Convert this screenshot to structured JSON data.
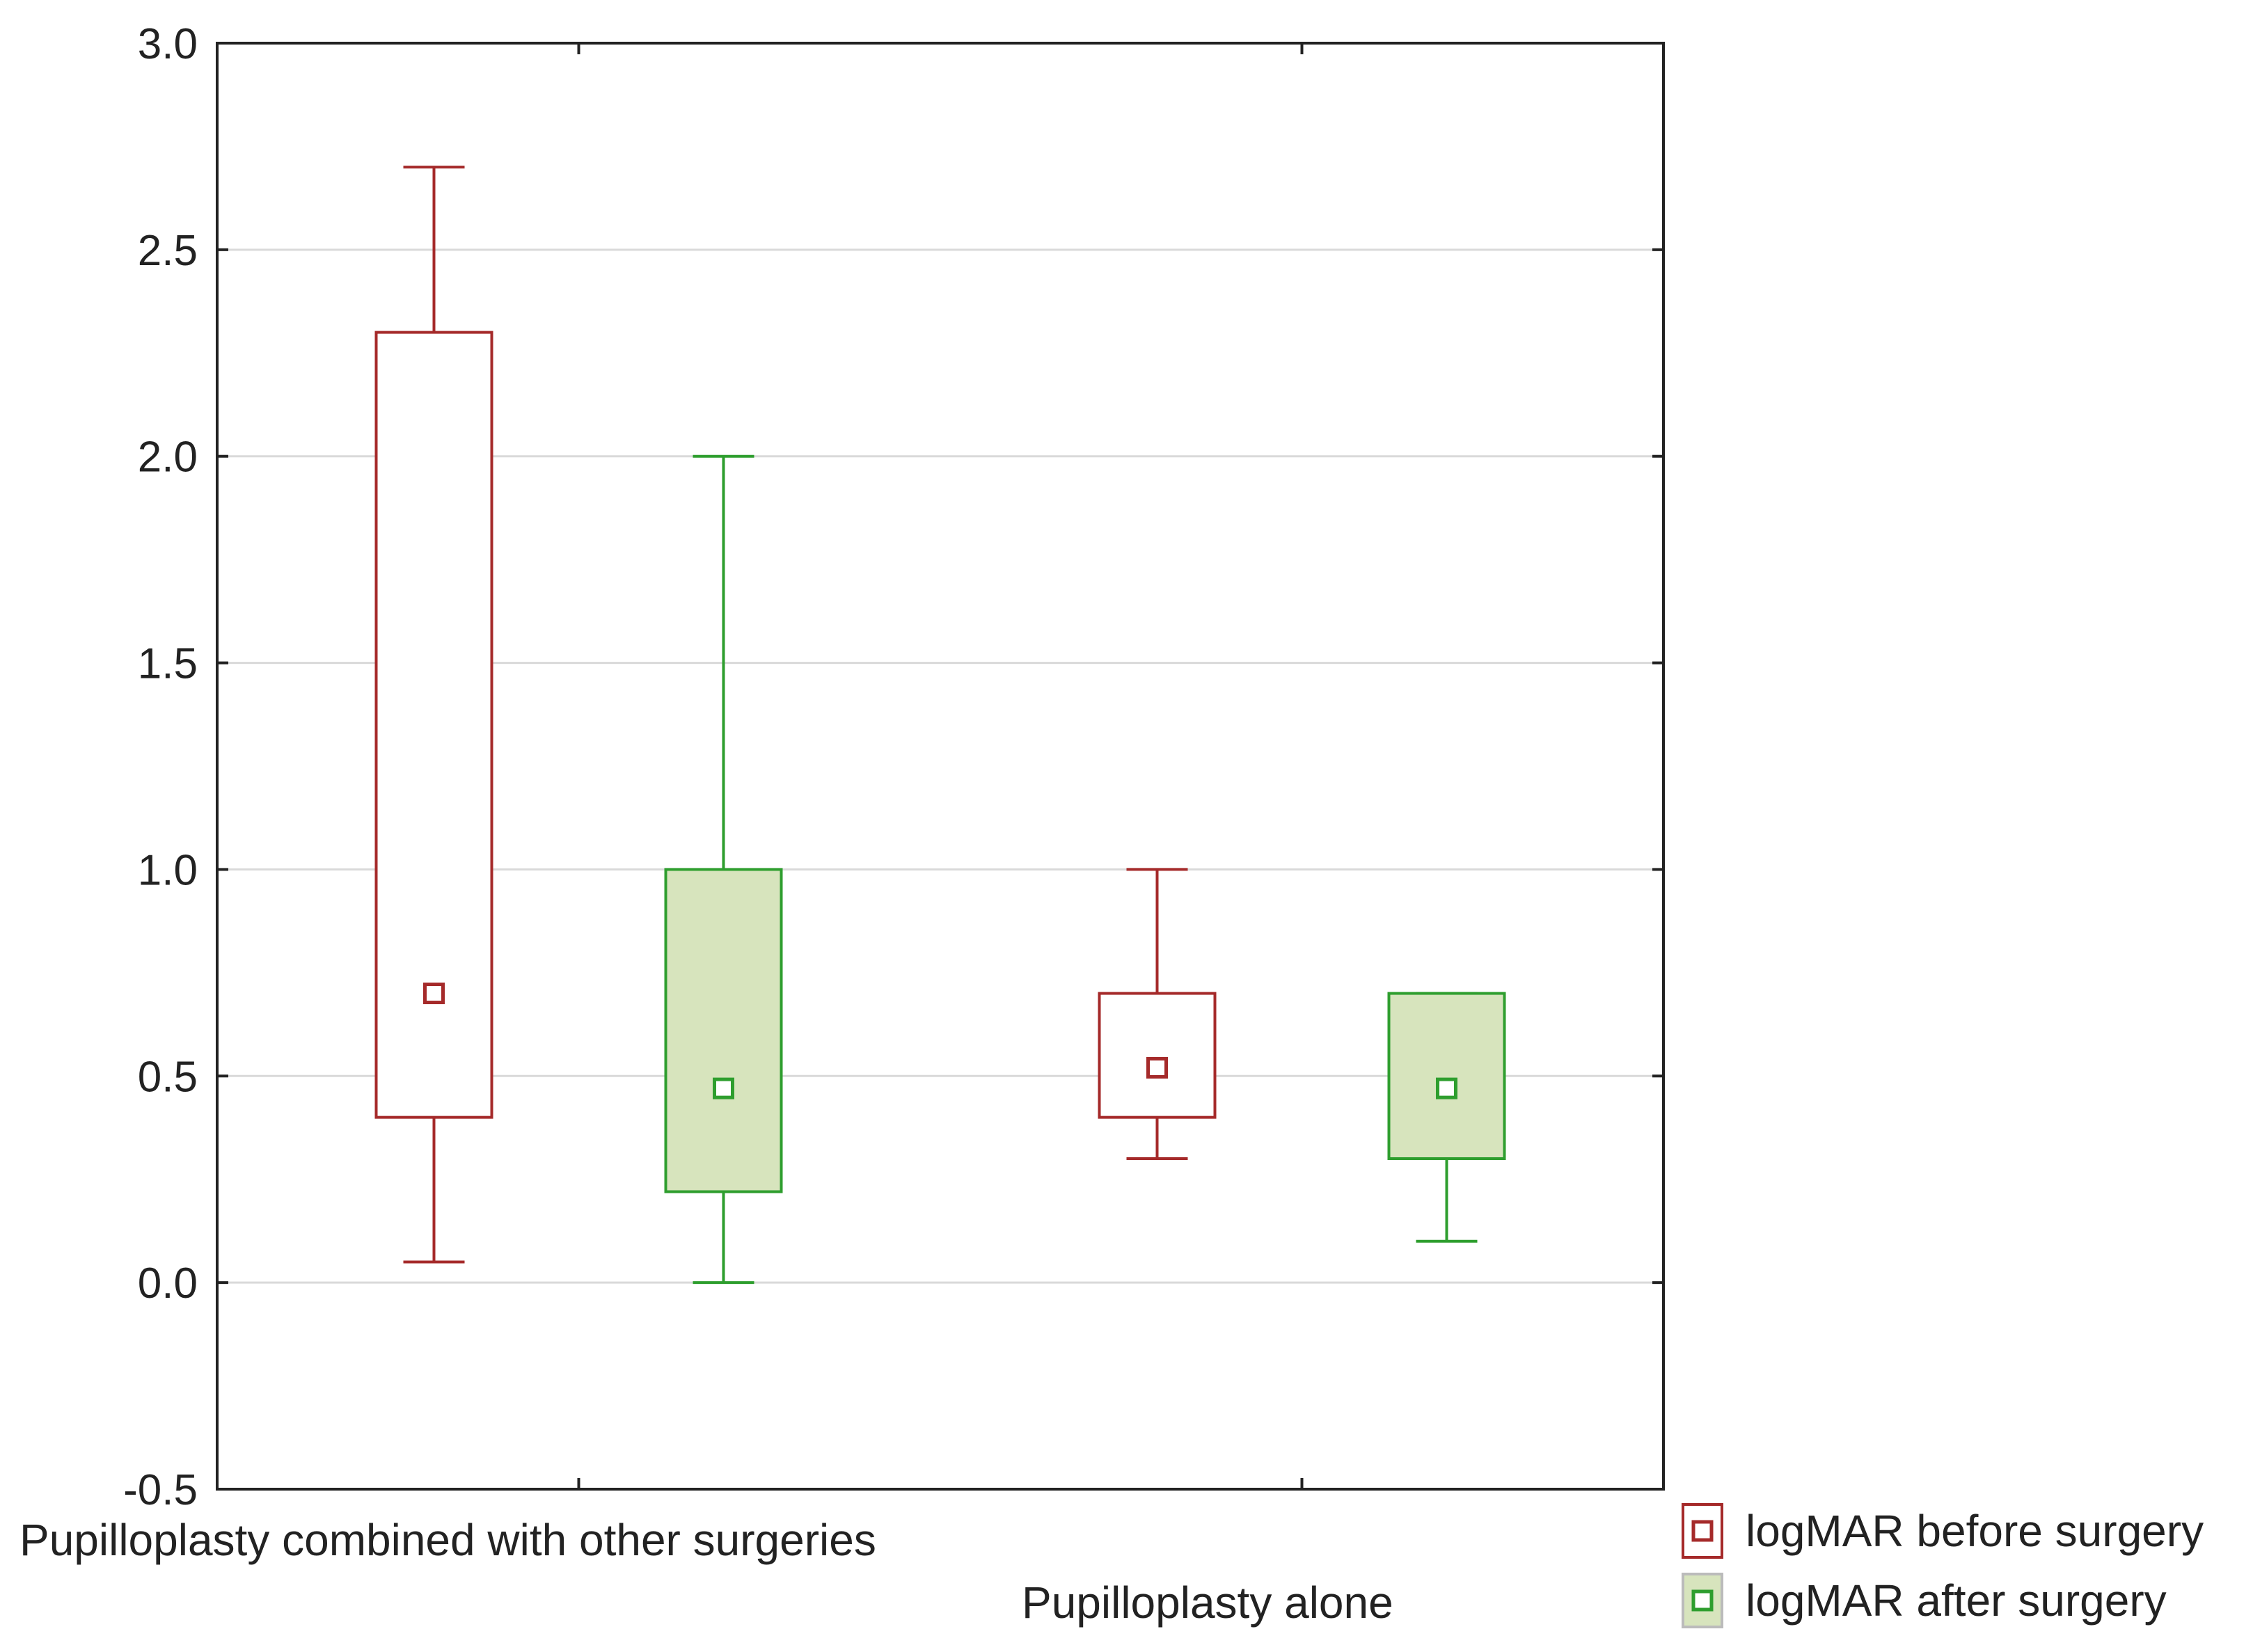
{
  "chart_data": {
    "type": "boxplot",
    "title": "",
    "xlabel": "",
    "ylabel": "",
    "ylim": [
      -0.5,
      3.0
    ],
    "yticks": [
      -0.5,
      0.0,
      0.5,
      1.0,
      1.5,
      2.0,
      2.5,
      3.0
    ],
    "ytick_labels": [
      "-0.5",
      "0.0",
      "0.5",
      "1.0",
      "1.5",
      "2.0",
      "2.5",
      "3.0"
    ],
    "grid": true,
    "legend_position": "bottom-right",
    "categories": [
      "Pupilloplasty combined with other surgeries",
      "Pupilloplasty alone"
    ],
    "series": [
      {
        "name": "logMAR before surgery",
        "color": "#a52a2a",
        "fill": "#ffffff",
        "boxes": [
          {
            "min": 0.05,
            "q1": 0.4,
            "median": 0.7,
            "q3": 2.3,
            "max": 2.7
          },
          {
            "min": 0.3,
            "q1": 0.4,
            "median": 0.52,
            "q3": 0.7,
            "max": 1.0
          }
        ]
      },
      {
        "name": "logMAR after surgery",
        "color": "#2e9e2e",
        "fill": "#d7e4bd",
        "boxes": [
          {
            "min": 0.0,
            "q1": 0.22,
            "median": 0.47,
            "q3": 1.0,
            "max": 2.0
          },
          {
            "min": 0.1,
            "q1": 0.3,
            "median": 0.47,
            "q3": 0.7,
            "max": 0.7
          }
        ]
      }
    ],
    "colors": {
      "axis": "#222222",
      "grid": "#d9d9d9",
      "legend_border": "#bbbbbb"
    }
  }
}
